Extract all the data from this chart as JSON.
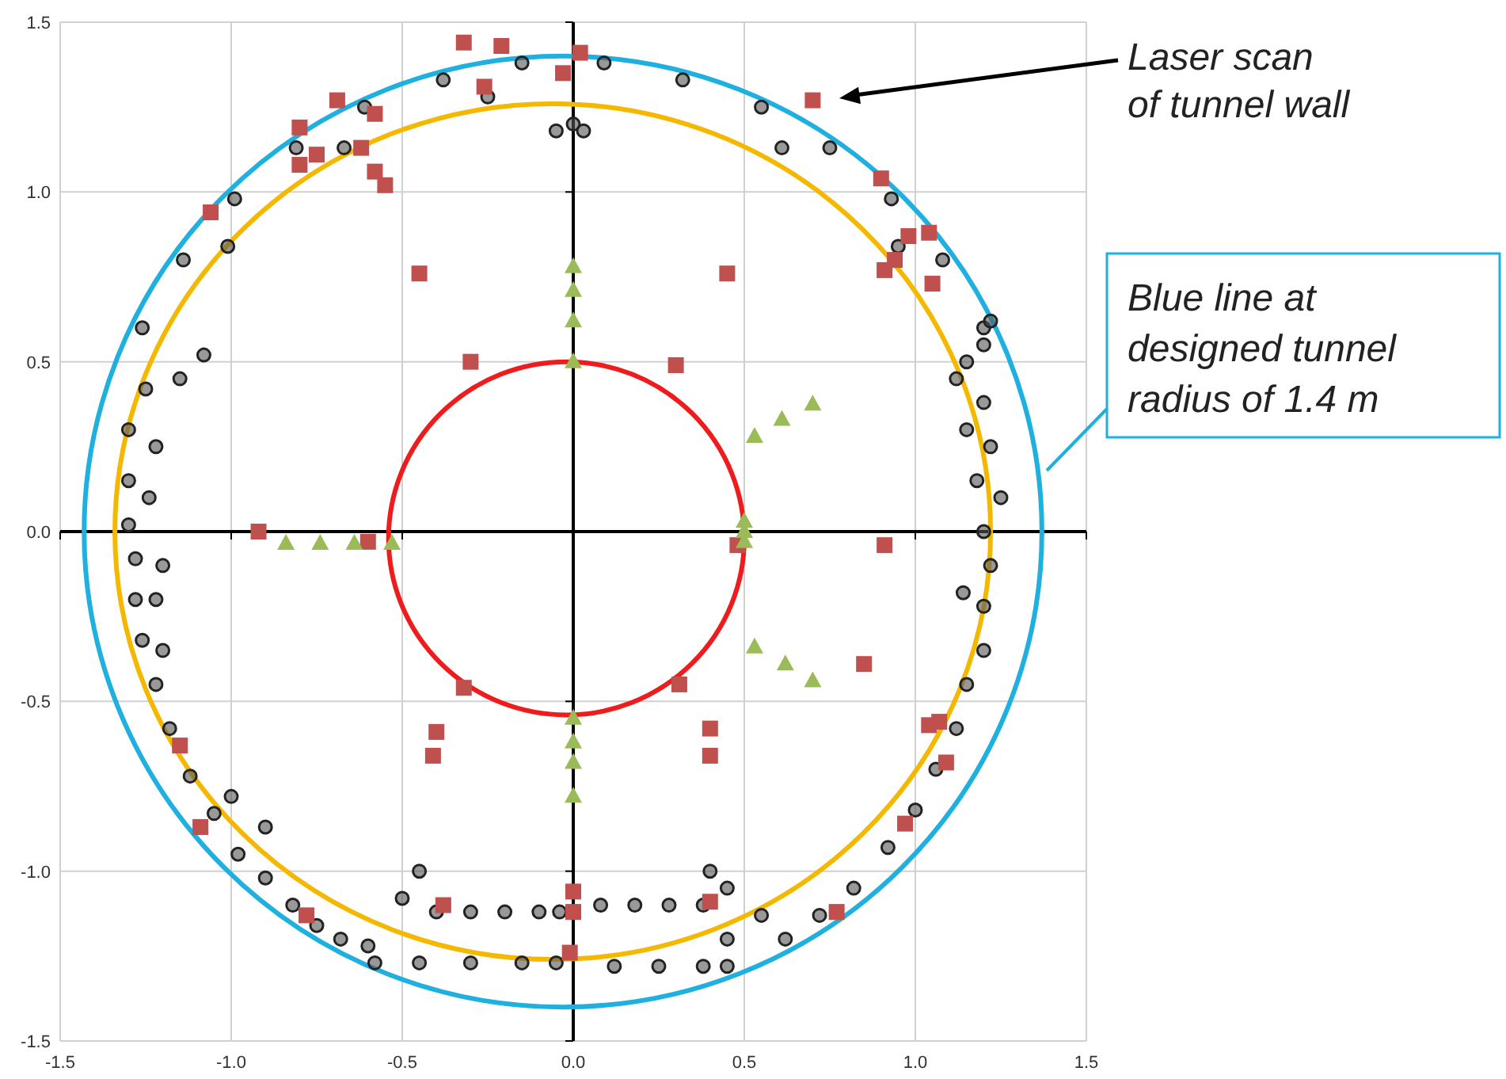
{
  "chart_data": {
    "type": "scatter",
    "xlim": [
      -1.5,
      1.5
    ],
    "ylim": [
      -1.5,
      1.5
    ],
    "xticks": [
      {
        "value": -1.5,
        "label": "-1.5"
      },
      {
        "value": -1,
        "label": "-1.0"
      },
      {
        "value": -0.5,
        "label": "-0.5"
      },
      {
        "value": 0,
        "label": "0.0"
      },
      {
        "value": 0.5,
        "label": "0.5"
      },
      {
        "value": 1,
        "label": "1.0"
      },
      {
        "value": 1.5,
        "label": "1.5"
      }
    ],
    "yticks": [
      {
        "value": -1.5,
        "label": "-1.5"
      },
      {
        "value": -1,
        "label": "-1.0"
      },
      {
        "value": -0.5,
        "label": "-0.5"
      },
      {
        "value": 0,
        "label": "0.0"
      },
      {
        "value": 0.5,
        "label": "0.5"
      },
      {
        "value": 1,
        "label": "1.0"
      },
      {
        "value": 1.5,
        "label": "1.5"
      }
    ],
    "grid": true,
    "series": [
      {
        "marker": "circle",
        "color": "#222222",
        "x": [
          1.2,
          1.08,
          0.93,
          0.75,
          0.55,
          0.32,
          0.09,
          -0.15,
          -0.38,
          -0.61,
          -0.81,
          -0.99,
          -1.14,
          -1.26,
          -0.25,
          -0.67,
          -1.01,
          0.61,
          0.95,
          0.0,
          -0.05,
          0.03,
          -1.08,
          -1.15,
          -1.25,
          -1.3,
          -1.22,
          -1.3,
          -1.24,
          -1.3,
          -1.28,
          -1.2,
          -1.22,
          -1.28,
          -1.26,
          -1.2,
          -1.22,
          -1.18,
          -1.12,
          -1.05,
          -0.98,
          -0.9,
          -0.82,
          -0.75,
          -0.68,
          -0.6,
          -1.0,
          -0.9,
          -0.4,
          -0.3,
          -0.2,
          -0.1,
          -0.04,
          -0.45,
          -0.5,
          -0.58,
          -0.45,
          -0.3,
          -0.15,
          -0.05,
          0.08,
          0.18,
          0.28,
          0.38,
          0.4,
          0.45,
          0.55,
          0.12,
          0.25,
          0.38,
          0.45,
          0.45,
          0.62,
          0.72,
          0.82,
          0.92,
          1.0,
          1.06,
          1.12,
          1.15,
          1.2,
          1.2,
          1.14,
          1.22,
          1.2,
          1.25,
          1.18,
          1.22,
          1.15,
          1.2,
          1.12,
          1.15,
          1.2,
          1.22
        ],
        "values": [
          0.6,
          0.8,
          0.98,
          1.13,
          1.25,
          1.33,
          1.38,
          1.38,
          1.33,
          1.25,
          1.13,
          0.98,
          0.8,
          0.6,
          1.28,
          1.13,
          0.84,
          1.13,
          0.84,
          1.2,
          1.18,
          1.18,
          0.52,
          0.45,
          0.42,
          0.3,
          0.25,
          0.15,
          0.1,
          0.02,
          -0.08,
          -0.1,
          -0.2,
          -0.2,
          -0.32,
          -0.35,
          -0.45,
          -0.58,
          -0.72,
          -0.83,
          -0.95,
          -1.02,
          -1.1,
          -1.16,
          -1.2,
          -1.22,
          -0.78,
          -0.87,
          -1.12,
          -1.12,
          -1.12,
          -1.12,
          -1.12,
          -1.0,
          -1.08,
          -1.27,
          -1.27,
          -1.27,
          -1.27,
          -1.27,
          -1.1,
          -1.1,
          -1.1,
          -1.1,
          -1.0,
          -1.05,
          -1.13,
          -1.28,
          -1.28,
          -1.28,
          -1.28,
          -1.2,
          -1.2,
          -1.13,
          -1.05,
          -0.93,
          -0.82,
          -0.7,
          -0.58,
          -0.45,
          -0.35,
          -0.22,
          -0.18,
          -0.1,
          0.0,
          0.1,
          0.15,
          0.25,
          0.3,
          0.38,
          0.45,
          0.5,
          0.55,
          0.62
        ]
      },
      {
        "marker": "square",
        "color": "#c0504d",
        "x": [
          -0.32,
          -0.21,
          -0.26,
          0.02,
          -0.03,
          -0.69,
          -0.8,
          -0.75,
          -0.8,
          -0.58,
          -0.62,
          -0.58,
          -0.55,
          -1.06,
          -0.45,
          -0.3,
          -0.92,
          -0.6,
          0.3,
          0.45,
          0.91,
          0.98,
          1.04,
          1.05,
          0.94,
          0.9,
          0.7,
          0.48,
          0.91,
          0.85,
          1.04,
          1.07,
          1.09,
          0.97,
          0.77,
          0.31,
          0.4,
          0.4,
          -0.32,
          -0.4,
          -0.41,
          0.0,
          0.0,
          -0.01,
          -0.38,
          0.4,
          -1.15,
          -1.09,
          -0.78
        ],
        "values": [
          1.44,
          1.43,
          1.31,
          1.41,
          1.35,
          1.27,
          1.19,
          1.11,
          1.08,
          1.23,
          1.13,
          1.06,
          1.02,
          0.94,
          0.76,
          0.5,
          0.0,
          -0.03,
          0.49,
          0.76,
          0.77,
          0.87,
          0.88,
          0.73,
          0.8,
          1.04,
          1.27,
          -0.04,
          -0.04,
          -0.39,
          -0.57,
          -0.56,
          -0.68,
          -0.86,
          -1.12,
          -0.45,
          -0.58,
          -0.66,
          -0.46,
          -0.59,
          -0.66,
          -1.12,
          -1.06,
          -1.24,
          -1.1,
          -1.09,
          -0.63,
          -0.87,
          -1.13
        ]
      },
      {
        "marker": "triangle",
        "color": "#9bbb59",
        "x": [
          0,
          0,
          0,
          0,
          0,
          0,
          0,
          0,
          -0.84,
          -0.74,
          -0.64,
          -0.53,
          0.5,
          0.5,
          0.5,
          0.53,
          0.61,
          0.7,
          0.53,
          0.62,
          0.7
        ],
        "values": [
          0.78,
          0.71,
          0.62,
          0.5,
          -0.55,
          -0.62,
          -0.68,
          -0.78,
          -0.035,
          -0.035,
          -0.035,
          -0.035,
          0.03,
          0.0,
          -0.03,
          0.28,
          0.33,
          0.375,
          -0.34,
          -0.39,
          -0.44
        ]
      }
    ],
    "annotations": [
      "Laser scan\nof tunnel wall",
      "Blue line at\ndesigned tunnel\nradius of 1.4 m"
    ]
  }
}
